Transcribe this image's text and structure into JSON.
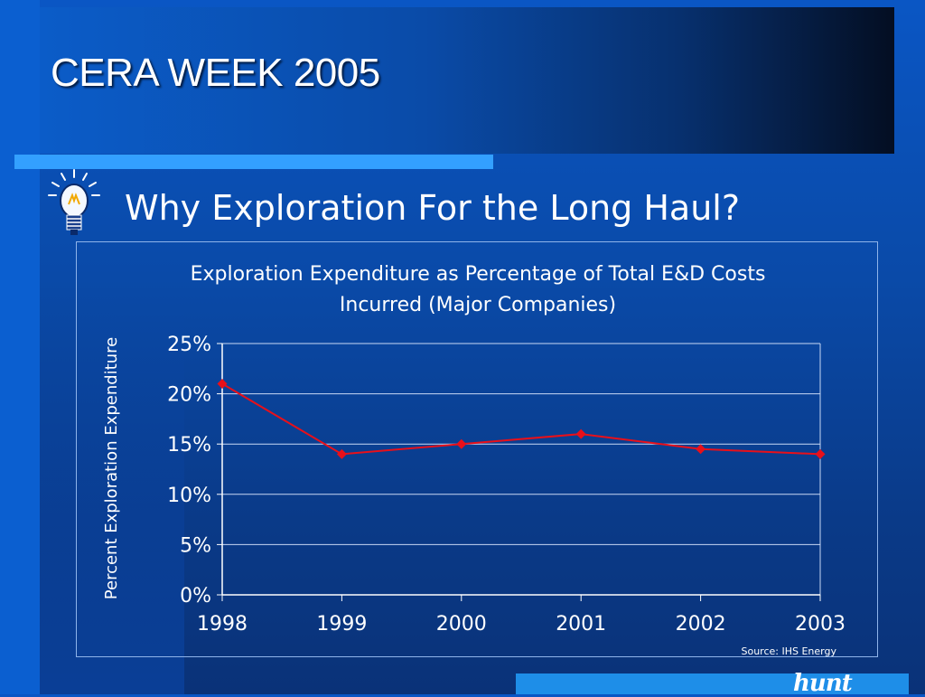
{
  "slide": {
    "title": "CERA WEEK 2005",
    "subtitle": "Why Exploration For the Long Haul?",
    "logo": "hunt",
    "icon": "lightbulb-icon"
  },
  "chart_data": {
    "type": "line",
    "title_line1": "Exploration Expenditure as Percentage of Total E&D Costs",
    "title_line2": "Incurred (Major Companies)",
    "xlabel": "",
    "ylabel": "Percent Exploration Expenditure",
    "source": "Source: IHS Energy",
    "categories": [
      "1998",
      "1999",
      "2000",
      "2001",
      "2002",
      "2003"
    ],
    "series": [
      {
        "values": [
          21,
          14,
          15,
          16,
          14.5,
          14
        ],
        "color": "#e8101a"
      }
    ],
    "ylim": [
      0,
      25
    ],
    "yticks": [
      0,
      5,
      10,
      15,
      20,
      25
    ],
    "ytick_labels": [
      "0%",
      "5%",
      "10%",
      "15%",
      "20%",
      "25%"
    ],
    "grid": true,
    "legend": "none"
  }
}
